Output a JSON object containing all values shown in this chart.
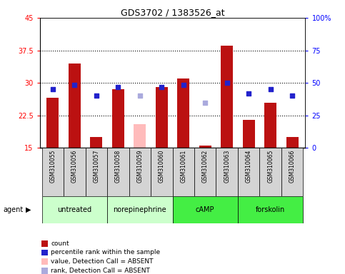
{
  "title": "GDS3702 / 1383526_at",
  "samples": [
    "GSM310055",
    "GSM310056",
    "GSM310057",
    "GSM310058",
    "GSM310059",
    "GSM310060",
    "GSM310061",
    "GSM310062",
    "GSM310063",
    "GSM310064",
    "GSM310065",
    "GSM310066"
  ],
  "count_values": [
    26.5,
    34.5,
    17.5,
    28.5,
    null,
    29.0,
    31.0,
    15.5,
    38.5,
    21.5,
    25.5,
    17.5
  ],
  "absent_count_values": [
    null,
    null,
    null,
    null,
    20.5,
    null,
    null,
    null,
    null,
    null,
    null,
    null
  ],
  "percentile_values": [
    28.5,
    29.5,
    27.0,
    29.0,
    null,
    29.0,
    29.5,
    null,
    30.0,
    27.5,
    28.5,
    27.0
  ],
  "absent_percentile_values": [
    null,
    null,
    null,
    null,
    27.0,
    null,
    null,
    25.5,
    null,
    null,
    null,
    null
  ],
  "groups": [
    {
      "label": "untreated",
      "indices": [
        0,
        1,
        2
      ],
      "light": true
    },
    {
      "label": "norepinephrine",
      "indices": [
        3,
        4,
        5
      ],
      "light": true
    },
    {
      "label": "cAMP",
      "indices": [
        6,
        7,
        8
      ],
      "light": false
    },
    {
      "label": "forskolin",
      "indices": [
        9,
        10,
        11
      ],
      "light": false
    }
  ],
  "ylim_left": [
    15,
    45
  ],
  "ylim_right": [
    0,
    100
  ],
  "yticks_left": [
    15,
    22.5,
    30,
    37.5,
    45
  ],
  "yticks_right": [
    0,
    25,
    50,
    75,
    100
  ],
  "ytick_labels_left": [
    "15",
    "22.5",
    "30",
    "37.5",
    "45"
  ],
  "ytick_labels_right": [
    "0",
    "25",
    "50",
    "75",
    "100%"
  ],
  "bar_color_red": "#bb1111",
  "bar_color_pink": "#ffbbbb",
  "dot_color_blue": "#2222cc",
  "dot_color_lavender": "#aaaadd",
  "bar_width": 0.55,
  "group_color_light": "#ccffcc",
  "group_color_dark": "#44ee44",
  "legend_items": [
    {
      "color": "#bb1111",
      "label": "count"
    },
    {
      "color": "#2222cc",
      "label": "percentile rank within the sample"
    },
    {
      "color": "#ffbbbb",
      "label": "value, Detection Call = ABSENT"
    },
    {
      "color": "#aaaadd",
      "label": "rank, Detection Call = ABSENT"
    }
  ]
}
